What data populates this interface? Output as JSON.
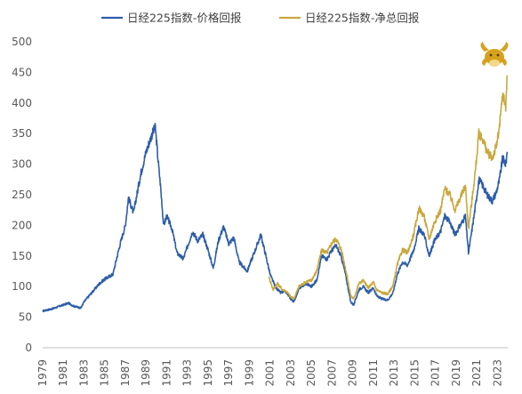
{
  "chart_data": {
    "type": "line",
    "title": "",
    "xlabel": "",
    "ylabel": "",
    "xlim": [
      1979,
      2024
    ],
    "ylim": [
      0,
      500
    ],
    "y_ticks": [
      0,
      50,
      100,
      150,
      200,
      250,
      300,
      350,
      400,
      450,
      500
    ],
    "x_ticks": [
      "1979",
      "1981",
      "1983",
      "1985",
      "1987",
      "1989",
      "1991",
      "1993",
      "1995",
      "1997",
      "1999",
      "2001",
      "2003",
      "2005",
      "2007",
      "2009",
      "2011",
      "2013",
      "2015",
      "2017",
      "2019",
      "2021",
      "2023"
    ],
    "grid": false,
    "legend_position": "top",
    "annotation_icon": "ox-head-icon",
    "series": [
      {
        "name": "日经225指数-价格回报",
        "color": "#2E5DA8",
        "points": [
          [
            1979.0,
            60
          ],
          [
            1980.0,
            64
          ],
          [
            1981.0,
            70
          ],
          [
            1981.5,
            73
          ],
          [
            1982.0,
            68
          ],
          [
            1982.7,
            65
          ],
          [
            1983.0,
            75
          ],
          [
            1984.0,
            95
          ],
          [
            1984.5,
            105
          ],
          [
            1985.0,
            112
          ],
          [
            1985.8,
            120
          ],
          [
            1986.0,
            135
          ],
          [
            1986.5,
            170
          ],
          [
            1987.0,
            200
          ],
          [
            1987.3,
            245
          ],
          [
            1987.8,
            220
          ],
          [
            1988.0,
            240
          ],
          [
            1988.5,
            285
          ],
          [
            1989.0,
            320
          ],
          [
            1989.6,
            350
          ],
          [
            1989.9,
            360
          ],
          [
            1990.2,
            300
          ],
          [
            1990.4,
            265
          ],
          [
            1990.7,
            200
          ],
          [
            1991.0,
            215
          ],
          [
            1991.5,
            195
          ],
          [
            1992.0,
            155
          ],
          [
            1992.6,
            145
          ],
          [
            1993.0,
            165
          ],
          [
            1993.5,
            190
          ],
          [
            1994.0,
            175
          ],
          [
            1994.5,
            185
          ],
          [
            1995.0,
            160
          ],
          [
            1995.5,
            130
          ],
          [
            1996.0,
            175
          ],
          [
            1996.5,
            198
          ],
          [
            1997.0,
            170
          ],
          [
            1997.5,
            180
          ],
          [
            1998.0,
            140
          ],
          [
            1998.8,
            125
          ],
          [
            1999.0,
            135
          ],
          [
            1999.8,
            170
          ],
          [
            2000.1,
            185
          ],
          [
            2000.6,
            150
          ],
          [
            2001.0,
            120
          ],
          [
            2001.5,
            100
          ],
          [
            2002.0,
            90
          ],
          [
            2002.5,
            92
          ],
          [
            2003.0,
            80
          ],
          [
            2003.3,
            75
          ],
          [
            2003.8,
            97
          ],
          [
            2004.5,
            105
          ],
          [
            2005.0,
            100
          ],
          [
            2005.5,
            110
          ],
          [
            2006.0,
            150
          ],
          [
            2006.5,
            145
          ],
          [
            2007.0,
            160
          ],
          [
            2007.4,
            167
          ],
          [
            2007.9,
            148
          ],
          [
            2008.3,
            120
          ],
          [
            2008.8,
            75
          ],
          [
            2009.1,
            70
          ],
          [
            2009.6,
            95
          ],
          [
            2010.0,
            100
          ],
          [
            2010.5,
            90
          ],
          [
            2011.0,
            98
          ],
          [
            2011.3,
            85
          ],
          [
            2011.8,
            80
          ],
          [
            2012.4,
            78
          ],
          [
            2012.9,
            90
          ],
          [
            2013.3,
            120
          ],
          [
            2013.8,
            140
          ],
          [
            2014.3,
            135
          ],
          [
            2014.9,
            160
          ],
          [
            2015.4,
            195
          ],
          [
            2015.9,
            185
          ],
          [
            2016.4,
            150
          ],
          [
            2016.9,
            175
          ],
          [
            2017.5,
            190
          ],
          [
            2017.9,
            215
          ],
          [
            2018.4,
            205
          ],
          [
            2018.9,
            185
          ],
          [
            2019.4,
            200
          ],
          [
            2019.9,
            215
          ],
          [
            2020.2,
            155
          ],
          [
            2020.6,
            200
          ],
          [
            2020.9,
            235
          ],
          [
            2021.2,
            275
          ],
          [
            2021.6,
            265
          ],
          [
            2022.0,
            250
          ],
          [
            2022.5,
            240
          ],
          [
            2022.9,
            255
          ],
          [
            2023.2,
            275
          ],
          [
            2023.5,
            310
          ],
          [
            2023.8,
            300
          ],
          [
            2023.95,
            320
          ]
        ]
      },
      {
        "name": "日经225指数-净总回报",
        "color": "#C9A83E",
        "points": [
          [
            2000.9,
            115
          ],
          [
            2001.3,
            95
          ],
          [
            2001.7,
            105
          ],
          [
            2002.2,
            95
          ],
          [
            2002.6,
            92
          ],
          [
            2003.0,
            83
          ],
          [
            2003.3,
            80
          ],
          [
            2003.8,
            100
          ],
          [
            2004.5,
            108
          ],
          [
            2005.0,
            110
          ],
          [
            2005.5,
            125
          ],
          [
            2006.0,
            160
          ],
          [
            2006.5,
            155
          ],
          [
            2007.0,
            172
          ],
          [
            2007.4,
            178
          ],
          [
            2007.9,
            160
          ],
          [
            2008.3,
            130
          ],
          [
            2008.8,
            85
          ],
          [
            2009.1,
            80
          ],
          [
            2009.6,
            105
          ],
          [
            2010.0,
            110
          ],
          [
            2010.5,
            98
          ],
          [
            2011.0,
            107
          ],
          [
            2011.3,
            95
          ],
          [
            2011.8,
            90
          ],
          [
            2012.4,
            88
          ],
          [
            2012.9,
            102
          ],
          [
            2013.3,
            135
          ],
          [
            2013.8,
            160
          ],
          [
            2014.3,
            155
          ],
          [
            2014.9,
            185
          ],
          [
            2015.4,
            228
          ],
          [
            2015.9,
            215
          ],
          [
            2016.4,
            178
          ],
          [
            2016.9,
            205
          ],
          [
            2017.5,
            225
          ],
          [
            2017.9,
            260
          ],
          [
            2018.4,
            250
          ],
          [
            2018.9,
            225
          ],
          [
            2019.4,
            245
          ],
          [
            2019.9,
            265
          ],
          [
            2020.2,
            195
          ],
          [
            2020.6,
            250
          ],
          [
            2020.9,
            295
          ],
          [
            2021.2,
            350
          ],
          [
            2021.6,
            340
          ],
          [
            2022.0,
            320
          ],
          [
            2022.5,
            310
          ],
          [
            2022.9,
            330
          ],
          [
            2023.2,
            360
          ],
          [
            2023.5,
            415
          ],
          [
            2023.8,
            395
          ],
          [
            2023.95,
            445
          ]
        ]
      }
    ]
  }
}
